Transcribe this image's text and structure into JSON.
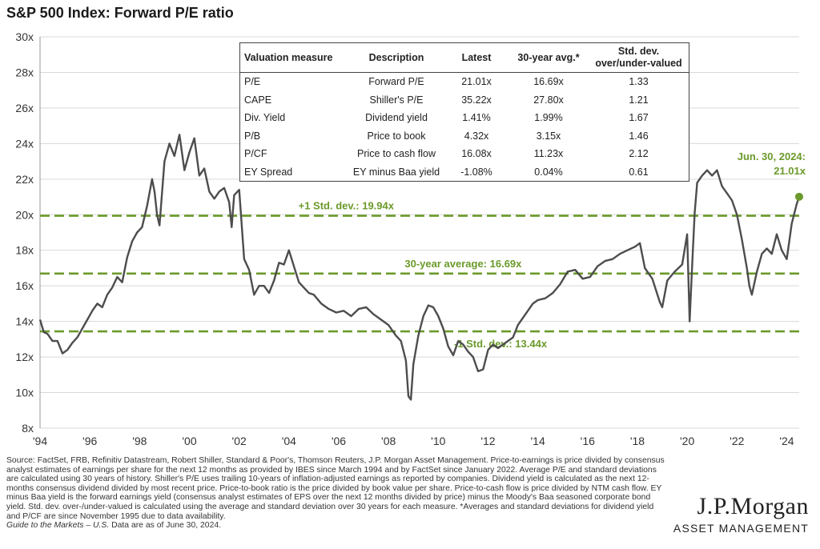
{
  "title": "S&P 500 Index: Forward P/E ratio",
  "chart_data": {
    "type": "line",
    "ylim": [
      8,
      30
    ],
    "yticks": [
      8,
      10,
      12,
      14,
      16,
      18,
      20,
      22,
      24,
      26,
      28,
      30
    ],
    "ytick_labels": [
      "8x",
      "10x",
      "12x",
      "14x",
      "16x",
      "18x",
      "20x",
      "22x",
      "24x",
      "26x",
      "28x",
      "30x"
    ],
    "xlim": [
      1994.0,
      2024.5
    ],
    "xtick_values": [
      1994,
      1996,
      1998,
      2000,
      2002,
      2004,
      2006,
      2008,
      2010,
      2012,
      2014,
      2016,
      2018,
      2020,
      2022,
      2024
    ],
    "xtick_labels": [
      "'94",
      "'96",
      "'98",
      "'00",
      "'02",
      "'04",
      "'06",
      "'08",
      "'10",
      "'12",
      "'14",
      "'16",
      "'18",
      "'20",
      "'22",
      "'24"
    ],
    "series": [
      {
        "x": [
          1994.0,
          1994.15,
          1994.3,
          1994.5,
          1994.7,
          1994.9,
          1995.1,
          1995.3,
          1995.5,
          1995.7,
          1995.9,
          1996.1,
          1996.3,
          1996.5,
          1996.7,
          1996.9,
          1997.1,
          1997.3,
          1997.5,
          1997.7,
          1997.9,
          1998.1,
          1998.3,
          1998.5,
          1998.6,
          1998.7,
          1998.8,
          1999.0,
          1999.2,
          1999.4,
          1999.6,
          1999.8,
          2000.0,
          2000.2,
          2000.4,
          2000.6,
          2000.8,
          2001.0,
          2001.2,
          2001.4,
          2001.6,
          2001.7,
          2001.8,
          2002.0,
          2002.2,
          2002.4,
          2002.6,
          2002.8,
          2003.0,
          2003.2,
          2003.4,
          2003.6,
          2003.8,
          2004.0,
          2004.2,
          2004.4,
          2004.6,
          2004.8,
          2005.0,
          2005.3,
          2005.6,
          2005.9,
          2006.2,
          2006.5,
          2006.8,
          2007.1,
          2007.4,
          2007.7,
          2008.0,
          2008.3,
          2008.5,
          2008.7,
          2008.8,
          2008.9,
          2009.0,
          2009.2,
          2009.4,
          2009.6,
          2009.8,
          2010.0,
          2010.2,
          2010.4,
          2010.6,
          2010.8,
          2011.0,
          2011.2,
          2011.4,
          2011.6,
          2011.8,
          2012.0,
          2012.2,
          2012.4,
          2012.6,
          2012.8,
          2013.0,
          2013.2,
          2013.4,
          2013.6,
          2013.8,
          2014.0,
          2014.3,
          2014.6,
          2014.9,
          2015.2,
          2015.5,
          2015.8,
          2016.1,
          2016.4,
          2016.7,
          2017.0,
          2017.3,
          2017.6,
          2017.9,
          2018.1,
          2018.3,
          2018.6,
          2018.9,
          2019.0,
          2019.2,
          2019.5,
          2019.8,
          2020.0,
          2020.1,
          2020.2,
          2020.3,
          2020.4,
          2020.6,
          2020.8,
          2021.0,
          2021.2,
          2021.4,
          2021.6,
          2021.8,
          2022.0,
          2022.2,
          2022.4,
          2022.5,
          2022.6,
          2022.8,
          2023.0,
          2023.2,
          2023.4,
          2023.6,
          2023.8,
          2024.0,
          2024.2,
          2024.4,
          2024.5
        ],
        "values": [
          14.1,
          13.4,
          13.3,
          12.9,
          12.9,
          12.2,
          12.4,
          12.8,
          13.1,
          13.6,
          14.1,
          14.6,
          15.0,
          14.8,
          15.5,
          15.9,
          16.5,
          16.2,
          17.6,
          18.5,
          19.0,
          19.3,
          20.5,
          22.0,
          21.3,
          20.0,
          19.4,
          23.0,
          24.0,
          23.3,
          24.5,
          22.5,
          23.5,
          24.3,
          22.2,
          22.6,
          21.3,
          20.9,
          21.3,
          21.5,
          20.7,
          19.3,
          21.1,
          21.4,
          17.5,
          16.9,
          15.5,
          16.0,
          16.0,
          15.6,
          16.3,
          17.3,
          17.2,
          18.0,
          17.1,
          16.2,
          15.9,
          15.6,
          15.5,
          15.0,
          14.7,
          14.5,
          14.6,
          14.3,
          14.7,
          14.8,
          14.4,
          14.1,
          13.8,
          13.2,
          12.9,
          11.8,
          9.8,
          9.6,
          11.6,
          13.2,
          14.3,
          14.9,
          14.8,
          14.3,
          13.6,
          12.6,
          12.1,
          12.9,
          12.7,
          12.3,
          12.0,
          11.2,
          11.3,
          12.4,
          12.7,
          12.5,
          12.7,
          12.9,
          13.1,
          13.8,
          14.2,
          14.6,
          15.0,
          15.2,
          15.3,
          15.6,
          16.1,
          16.8,
          16.9,
          16.4,
          16.5,
          17.1,
          17.4,
          17.5,
          17.8,
          18.0,
          18.2,
          18.4,
          17.0,
          16.4,
          15.1,
          14.8,
          16.3,
          16.8,
          17.2,
          18.9,
          14.0,
          17.1,
          20.1,
          21.8,
          22.2,
          22.5,
          22.2,
          22.5,
          21.6,
          21.2,
          20.8,
          20.0,
          18.6,
          17.0,
          16.0,
          15.5,
          16.8,
          17.8,
          18.1,
          17.8,
          18.9,
          18.0,
          17.5,
          19.5,
          20.6,
          21.01
        ]
      }
    ],
    "reference_lines": [
      {
        "value": 19.94,
        "label": "+1 Std. dev.: 19.94x"
      },
      {
        "value": 16.69,
        "label": "30-year average: 16.69x"
      },
      {
        "value": 13.44,
        "label": "-1 Std. dev.: 13.44x"
      }
    ],
    "annotation": {
      "line1": "Jun. 30, 2024:",
      "line2": "21.01x",
      "x": 2024.5,
      "value": 21.01
    },
    "colors": {
      "line": "#4d4d4d",
      "accent": "#6b9a2a",
      "grid": "#d9d9d9"
    },
    "grid": true
  },
  "table": {
    "headers": [
      "Valuation measure",
      "Description",
      "Latest",
      "30-year avg.*",
      "Std. dev. over/under-valued"
    ],
    "header_std_line1": "Std. dev.",
    "header_std_line2": "over/under-valued",
    "rows": [
      [
        "P/E",
        "Forward P/E",
        "21.01x",
        "16.69x",
        "1.33"
      ],
      [
        "CAPE",
        "Shiller's P/E",
        "35.22x",
        "27.80x",
        "1.21"
      ],
      [
        "Div. Yield",
        "Dividend yield",
        "1.41%",
        "1.99%",
        "1.67"
      ],
      [
        "P/B",
        "Price to book",
        "4.32x",
        "3.15x",
        "1.46"
      ],
      [
        "P/CF",
        "Price to cash flow",
        "16.08x",
        "11.23x",
        "2.12"
      ],
      [
        "EY Spread",
        "EY minus Baa yield",
        "-1.08%",
        "0.04%",
        "0.61"
      ]
    ]
  },
  "footnote": {
    "text": "Source: FactSet, FRB, Refinitiv Datastream, Robert Shiller, Standard & Poor's, Thomson Reuters, J.P. Morgan Asset Management. Price-to-earnings is price divided by consensus analyst estimates of earnings per share for the next 12 months as provided by IBES since March 1994 and by FactSet since January 2022. Average P/E and standard deviations are calculated using 30 years of history. Shiller's P/E uses trailing 10-years of inflation-adjusted earnings as reported by companies. Dividend yield is calculated as the next 12-months consensus dividend divided by most recent price. Price-to-book ratio is the price divided by book value per share. Price-to-cash flow is price divided by NTM cash flow. EY minus Baa yield is the forward earnings yield (consensus analyst estimates of EPS over the next 12 months divided by price) minus the Moody's Baa seasoned corporate bond yield. Std. dev. over-/under-valued is calculated using the average and standard deviation over 30 years for each measure. *Averages and standard deviations for dividend yield and P/CF are since November 1995 due to data availability.",
    "guide": "Guide to the Markets – U.S.",
    "as_of": " Data are as of June 30, 2024."
  },
  "logo": {
    "name": "J.P.Morgan",
    "subtitle": "ASSET MANAGEMENT"
  }
}
